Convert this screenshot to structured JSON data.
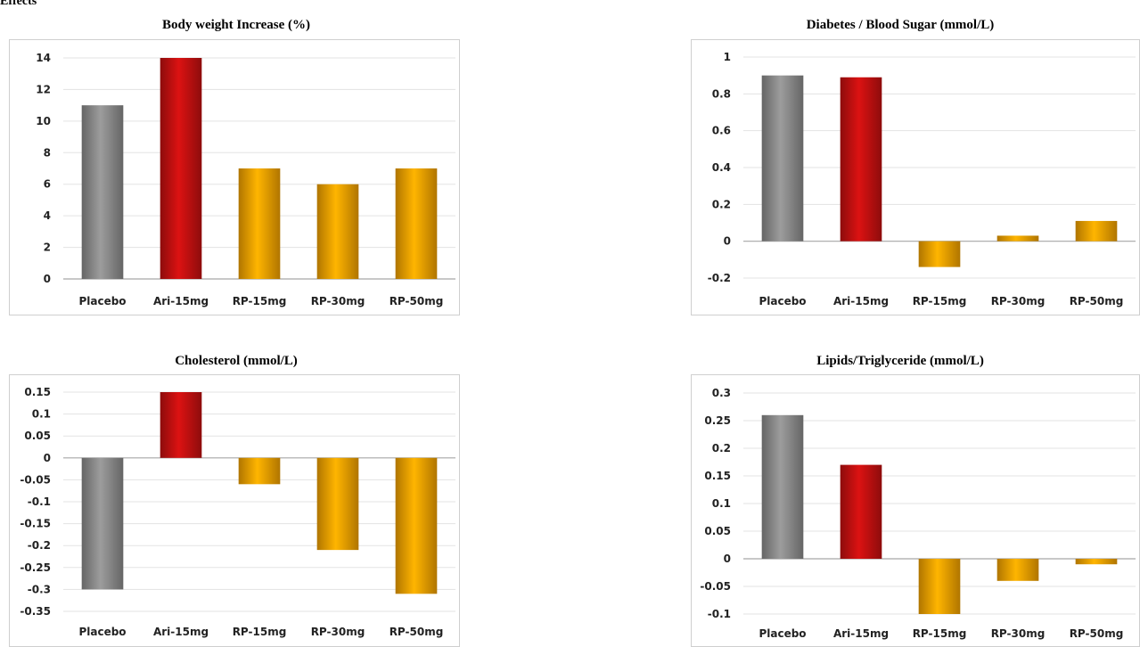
{
  "corner_label": "Effects",
  "chart_data": [
    {
      "type": "bar",
      "title": "Body weight Increase (%)",
      "categories": [
        "Placebo",
        "Ari-15mg",
        "RP-15mg",
        "RP-30mg",
        "RP-50mg"
      ],
      "values": [
        11,
        14,
        7,
        6,
        7
      ],
      "yticks": [
        "14",
        "12",
        "10",
        "8",
        "6",
        "4",
        "2",
        "0"
      ],
      "ylim": [
        0,
        14
      ],
      "grid": true,
      "colors": [
        "#8c8c8c",
        "#c41010",
        "#f5a200",
        "#f5a200",
        "#f5a200"
      ]
    },
    {
      "type": "bar",
      "title": "Diabetes / Blood Sugar (mmol/L)",
      "categories": [
        "Placebo",
        "Ari-15mg",
        "RP-15mg",
        "RP-30mg",
        "RP-50mg"
      ],
      "values": [
        0.9,
        0.89,
        -0.14,
        0.03,
        0.11
      ],
      "yticks": [
        "1",
        "0.8",
        "0.6",
        "0.4",
        "0.2",
        "0",
        "-0.2"
      ],
      "ylim": [
        -0.2,
        1
      ],
      "grid": true,
      "colors": [
        "#8c8c8c",
        "#c41010",
        "#f5a200",
        "#f5a200",
        "#f5a200"
      ]
    },
    {
      "type": "bar",
      "title": "Cholesterol (mmol/L)",
      "categories": [
        "Placebo",
        "Ari-15mg",
        "RP-15mg",
        "RP-30mg",
        "RP-50mg"
      ],
      "values": [
        -0.3,
        0.15,
        -0.06,
        -0.21,
        -0.31
      ],
      "yticks": [
        "0.15",
        "0.1",
        "0.05",
        "0",
        "-0.05",
        "-0.1",
        "-0.15",
        "-0.2",
        "-0.25",
        "-0.3",
        "-0.35"
      ],
      "ylim": [
        -0.35,
        0.15
      ],
      "grid": true,
      "colors": [
        "#8c8c8c",
        "#c41010",
        "#f5a200",
        "#f5a200",
        "#f5a200"
      ]
    },
    {
      "type": "bar",
      "title": "Lipids/Triglyceride (mmol/L)",
      "categories": [
        "Placebo",
        "Ari-15mg",
        "RP-15mg",
        "RP-30mg",
        "RP-50mg"
      ],
      "values": [
        0.26,
        0.17,
        -0.1,
        -0.04,
        -0.01
      ],
      "yticks": [
        "0.3",
        "0.25",
        "0.2",
        "0.15",
        "0.1",
        "0.05",
        "0",
        "-0.05",
        "-0.1"
      ],
      "ylim": [
        -0.1,
        0.3
      ],
      "grid": true,
      "colors": [
        "#8c8c8c",
        "#c41010",
        "#f5a200",
        "#f5a200",
        "#f5a200"
      ]
    }
  ]
}
